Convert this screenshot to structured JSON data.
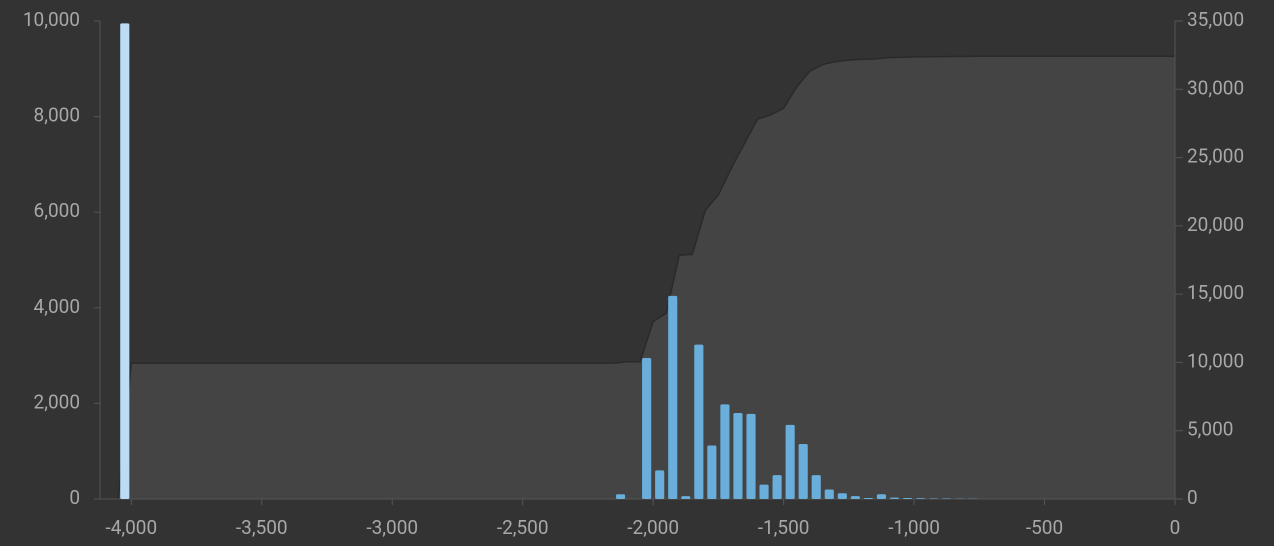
{
  "chart_data": {
    "type": "histogram",
    "bins": [
      -4050,
      -4000,
      -3950,
      -3900,
      -3850,
      -3800,
      -3750,
      -3700,
      -3650,
      -3600,
      -3550,
      -3500,
      -3450,
      -3400,
      -3350,
      -3300,
      -3250,
      -3200,
      -3150,
      -3100,
      -3050,
      -3000,
      -2950,
      -2900,
      -2850,
      -2800,
      -2750,
      -2700,
      -2650,
      -2600,
      -2550,
      -2500,
      -2450,
      -2400,
      -2350,
      -2300,
      -2250,
      -2200,
      -2150,
      -2100,
      -2050,
      -2000,
      -1950,
      -1900,
      -1850,
      -1800,
      -1750,
      -1700,
      -1650,
      -1600,
      -1550,
      -1500,
      -1450,
      -1400,
      -1350,
      -1300,
      -1250,
      -1200,
      -1150,
      -1100,
      -1050,
      -1000,
      -950,
      -900,
      -850,
      -800,
      -750
    ],
    "values": [
      9950,
      0,
      0,
      0,
      0,
      0,
      0,
      0,
      0,
      0,
      0,
      0,
      0,
      0,
      0,
      0,
      0,
      0,
      0,
      0,
      0,
      0,
      0,
      0,
      0,
      0,
      0,
      0,
      0,
      0,
      0,
      0,
      0,
      0,
      0,
      0,
      0,
      0,
      100,
      0,
      2950,
      600,
      4250,
      60,
      3230,
      1120,
      1980,
      1800,
      1780,
      300,
      500,
      1550,
      1150,
      500,
      200,
      120,
      60,
      20,
      100,
      30,
      20,
      15,
      10,
      10,
      5,
      5
    ],
    "colors": [
      "#bcdcf4",
      "#6aaedb",
      "#6aaedb",
      "#6aaedb",
      "#6aaedb",
      "#6aaedb",
      "#6aaedb",
      "#6aaedb",
      "#6aaedb",
      "#6aaedb",
      "#6aaedb",
      "#6aaedb",
      "#6aaedb",
      "#6aaedb",
      "#6aaedb",
      "#6aaedb",
      "#6aaedb",
      "#6aaedb",
      "#6aaedb",
      "#6aaedb",
      "#6aaedb",
      "#6aaedb",
      "#6aaedb",
      "#6aaedb",
      "#6aaedb",
      "#6aaedb",
      "#6aaedb",
      "#6aaedb",
      "#6aaedb",
      "#6aaedb",
      "#6aaedb",
      "#6aaedb",
      "#6aaedb",
      "#6aaedb",
      "#6aaedb",
      "#6aaedb",
      "#6aaedb",
      "#6aaedb",
      "#6aaedb",
      "#6aaedb",
      "#6aaedb",
      "#6aaedb",
      "#6aaedb",
      "#6aaedb",
      "#6aaedb",
      "#6aaedb",
      "#6aaedb",
      "#6aaedb",
      "#6aaedb",
      "#6aaedb",
      "#6aaedb",
      "#6aaedb",
      "#6aaedb",
      "#6aaedb",
      "#6aaedb",
      "#6aaedb",
      "#6aaedb",
      "#6aaedb",
      "#6aaedb",
      "#6aaedb",
      "#6aaedb",
      "#6aaedb",
      "#6aaedb",
      "#6aaedb",
      "#6aaedb",
      "#6aaedb"
    ],
    "series": [
      {
        "type": "area",
        "axis": "y2",
        "color": "#444444",
        "x": [
          -4120,
          -4050,
          -4000,
          -2150,
          -2100,
          -2050,
          -2000,
          -1950,
          -1900,
          -1850,
          -1800,
          -1750,
          -1700,
          -1650,
          -1600,
          -1550,
          -1500,
          -1450,
          -1400,
          -1350,
          -1300,
          -1250,
          -1200,
          -1150,
          -1100,
          -1050,
          -1000,
          -950,
          -900,
          -850,
          -800,
          -750,
          0
        ],
        "values": [
          0,
          0,
          9950,
          9950,
          10050,
          10050,
          13000,
          13600,
          17850,
          17910,
          21140,
          22260,
          24240,
          26040,
          27820,
          28120,
          28620,
          30170,
          31320,
          31820,
          32020,
          32140,
          32200,
          32220,
          32320,
          32350,
          32370,
          32385,
          32395,
          32405,
          32410,
          32415,
          32415
        ]
      }
    ],
    "xlim": [
      -4120,
      0
    ],
    "xticks": [
      {
        "value": -4000,
        "label": "-4,000"
      },
      {
        "value": -3500,
        "label": "-3,500"
      },
      {
        "value": -3000,
        "label": "-3,000"
      },
      {
        "value": -2500,
        "label": "-2,500"
      },
      {
        "value": -2000,
        "label": "-2,000"
      },
      {
        "value": -1500,
        "label": "-1,500"
      },
      {
        "value": -1000,
        "label": "-1,000"
      },
      {
        "value": -500,
        "label": "-500"
      },
      0
    ],
    "ylim": [
      0,
      10000
    ],
    "yticks": [
      0,
      {
        "value": 2000,
        "label": "2,000"
      },
      {
        "value": 4000,
        "label": "4,000"
      },
      {
        "value": 6000,
        "label": "6,000"
      },
      {
        "value": 8000,
        "label": "8,000"
      },
      {
        "value": 10000,
        "label": "10,000"
      }
    ],
    "y2lim": [
      0,
      35000
    ],
    "y2ticks": [
      0,
      {
        "value": 5000,
        "label": "5,000"
      },
      {
        "value": 10000,
        "label": "10,000"
      },
      {
        "value": 15000,
        "label": "15,000"
      },
      {
        "value": 20000,
        "label": "20,000"
      },
      {
        "value": 25000,
        "label": "25,000"
      },
      {
        "value": 30000,
        "label": "30,000"
      },
      {
        "value": 35000,
        "label": "35,000"
      }
    ]
  }
}
